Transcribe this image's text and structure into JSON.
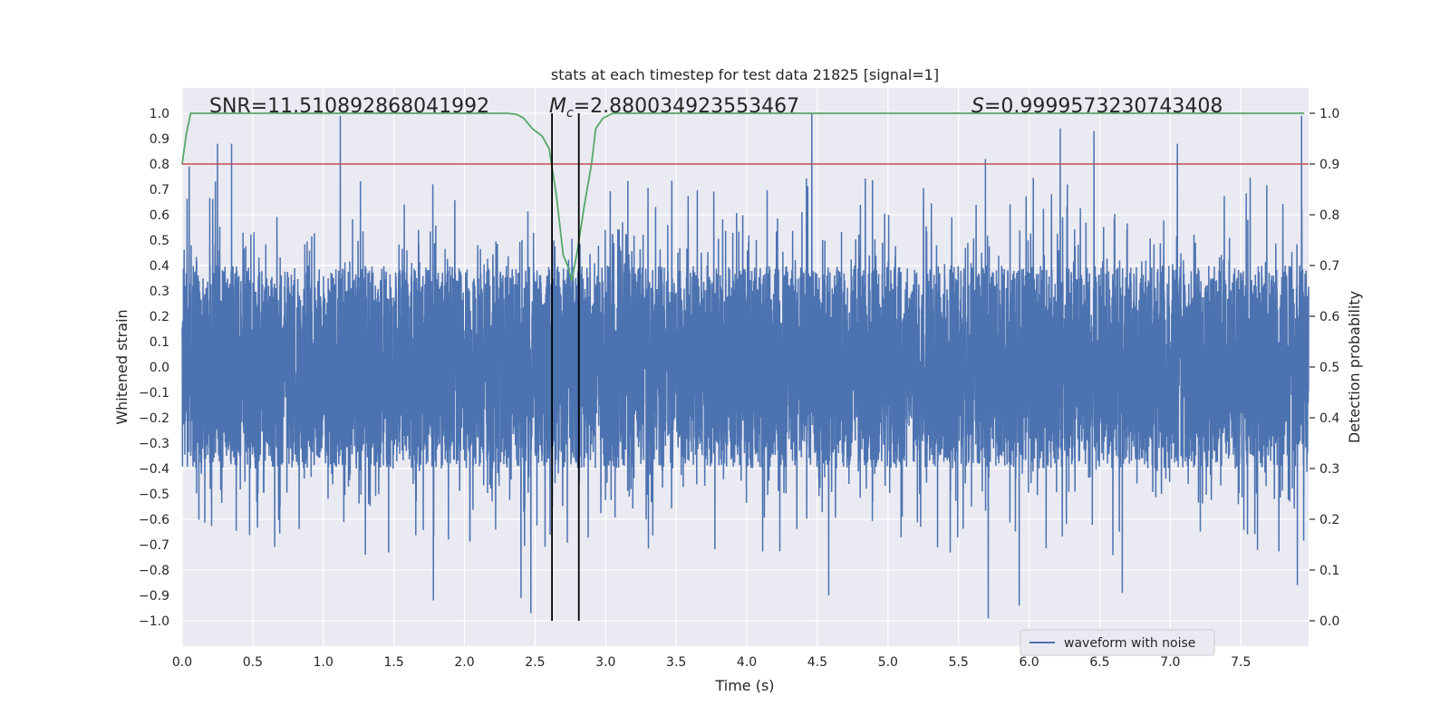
{
  "chart_data": {
    "type": "line",
    "title": "stats at each timestep for test data 21825 [signal=1]",
    "xlabel": "Time (s)",
    "ylabel": "Whitened strain",
    "ylabel_right": "Detection probability",
    "xlim": [
      0.0,
      7.98
    ],
    "ylim": [
      -1.1,
      1.1
    ],
    "ylim_right": [
      -0.05,
      1.05
    ],
    "grid": true,
    "xticks": [
      0.0,
      0.5,
      1.0,
      1.5,
      2.0,
      2.5,
      3.0,
      3.5,
      4.0,
      4.5,
      5.0,
      5.5,
      6.0,
      6.5,
      7.0,
      7.5
    ],
    "xtick_labels": [
      "0.0",
      "0.5",
      "1.0",
      "1.5",
      "2.0",
      "2.5",
      "3.0",
      "3.5",
      "4.0",
      "4.5",
      "5.0",
      "5.5",
      "6.0",
      "6.5",
      "7.0",
      "7.5"
    ],
    "yticks": [
      1.0,
      0.9,
      0.8,
      0.7,
      0.6,
      0.5,
      0.4,
      0.3,
      0.2,
      0.1,
      0.0,
      -0.1,
      -0.2,
      -0.3,
      -0.4,
      -0.5,
      -0.6,
      -0.7,
      -0.8,
      -0.9,
      -1.0
    ],
    "ytick_labels": [
      "1.0",
      "0.9",
      "0.8",
      "0.7",
      "0.6",
      "0.5",
      "0.4",
      "0.3",
      "0.2",
      "0.1",
      "0.0",
      "−0.1",
      "−0.2",
      "−0.3",
      "−0.4",
      "−0.5",
      "−0.6",
      "−0.7",
      "−0.8",
      "−0.9",
      "−1.0"
    ],
    "yticks_right": [
      1.0,
      0.9,
      0.8,
      0.7,
      0.6,
      0.5,
      0.4,
      0.3,
      0.2,
      0.1,
      0.0
    ],
    "ytick_labels_right": [
      "1.0",
      "0.9",
      "0.8",
      "0.7",
      "0.6",
      "0.5",
      "0.4",
      "0.3",
      "0.2",
      "0.1",
      "0.0"
    ],
    "annotations": {
      "snr": "SNR=11.510892868041992",
      "mc_symbol": "M",
      "mc_subscript": "c",
      "mc_value": "=2.880034923553467",
      "s_symbol": "S",
      "s_value": "=0.9999573230743408"
    },
    "vertical_lines": [
      2.62,
      2.81
    ],
    "threshold_line": {
      "y_right": 0.9,
      "color": "#c44e52"
    },
    "series": [
      {
        "name": "waveform with noise",
        "color": "#4c72b0",
        "axis": "left",
        "seed": 21825,
        "n_samples": 8000,
        "typical_range": [
          -0.4,
          0.4
        ],
        "peak_spikes": [
          {
            "x": 0.05,
            "y": 0.79
          },
          {
            "x": 0.25,
            "y": 0.88
          },
          {
            "x": 0.35,
            "y": 0.88
          },
          {
            "x": 1.12,
            "y": 0.99
          },
          {
            "x": 4.46,
            "y": 1.0
          },
          {
            "x": 5.69,
            "y": 0.82
          },
          {
            "x": 6.22,
            "y": 0.94
          },
          {
            "x": 6.46,
            "y": 0.93
          },
          {
            "x": 7.05,
            "y": 0.88
          },
          {
            "x": 7.93,
            "y": 0.99
          },
          {
            "x": 1.78,
            "y": -0.92
          },
          {
            "x": 2.4,
            "y": -0.91
          },
          {
            "x": 2.47,
            "y": -0.97
          },
          {
            "x": 4.58,
            "y": -0.9
          },
          {
            "x": 5.71,
            "y": -0.99
          },
          {
            "x": 5.93,
            "y": -0.94
          },
          {
            "x": 6.66,
            "y": -0.89
          },
          {
            "x": 7.9,
            "y": -0.86
          }
        ]
      },
      {
        "name": "detection probability",
        "color": "#55a868",
        "axis": "right",
        "x": [
          0.0,
          0.03,
          0.06,
          0.1,
          0.3,
          1.0,
          2.0,
          2.3,
          2.37,
          2.42,
          2.48,
          2.55,
          2.6,
          2.65,
          2.7,
          2.73,
          2.76,
          2.8,
          2.85,
          2.9,
          2.93,
          2.98,
          3.05,
          3.2,
          4.0,
          5.0,
          6.0,
          7.0,
          7.95
        ],
        "y": [
          0.9,
          0.96,
          1.0,
          1.0,
          1.0,
          1.0,
          1.0,
          1.0,
          0.998,
          0.99,
          0.97,
          0.955,
          0.93,
          0.84,
          0.72,
          0.7,
          0.67,
          0.73,
          0.82,
          0.9,
          0.97,
          0.99,
          1.0,
          1.0,
          1.0,
          1.0,
          1.0,
          1.0,
          1.0
        ]
      }
    ],
    "legend": {
      "label": "waveform with noise",
      "position": "lower-right"
    }
  }
}
